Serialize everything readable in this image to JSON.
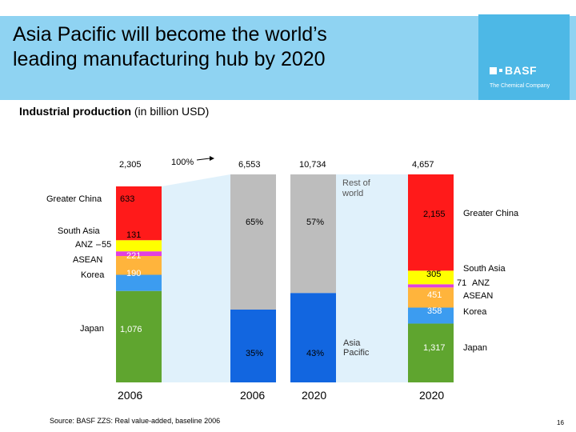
{
  "header": {
    "title_line1": "Asia Pacific will become the world’s",
    "title_line2": "leading manufacturing hub by 2020",
    "logo_text": "BASF",
    "logo_sub": "The Chemical Company",
    "colors": {
      "band": "#8fd3f2",
      "logo": "#4db8e6"
    }
  },
  "subtitle": {
    "bold": "Industrial production",
    "rest": " (in billion USD)"
  },
  "chart_data": {
    "type": "bar",
    "title": "Industrial production (in billion USD)",
    "categories": [
      "2006 Asia Pacific",
      "2006 World",
      "2020 World",
      "2020 Asia Pacific"
    ],
    "series": [
      {
        "name": "Japan",
        "color": "#5fa52f",
        "values": [
          1076,
          null,
          null,
          1317
        ]
      },
      {
        "name": "Korea",
        "color": "#3c9cf0",
        "values": [
          190,
          null,
          null,
          358
        ]
      },
      {
        "name": "ASEAN",
        "color": "#ffb43c",
        "values": [
          221,
          null,
          null,
          451
        ]
      },
      {
        "name": "ANZ",
        "color": "#e040e0",
        "values": [
          55,
          null,
          null,
          71
        ]
      },
      {
        "name": "South Asia",
        "color": "#ffff00",
        "values": [
          131,
          null,
          null,
          305
        ]
      },
      {
        "name": "Greater China",
        "color": "#ff1a1a",
        "values": [
          633,
          null,
          null,
          2155
        ]
      },
      {
        "name": "Asia Pacific share",
        "color": "#1266e0",
        "values": [
          null,
          35,
          43,
          null
        ]
      },
      {
        "name": "Rest of world share",
        "color": "#bdbdbd",
        "values": [
          null,
          65,
          57,
          null
        ]
      }
    ],
    "totals": [
      "2,305",
      "6,553",
      "10,734",
      "4,657"
    ],
    "bar_labels": {
      "col0": [
        "1,076",
        "190",
        "221",
        "131",
        "633"
      ],
      "col1": [
        "35%",
        "65%"
      ],
      "col2": [
        "43%",
        "57%"
      ],
      "col3": [
        "1,317",
        "358",
        "451",
        "305",
        "2,155"
      ]
    },
    "left_legend": [
      "Greater China",
      "South Asia",
      "ANZ",
      "55",
      "ASEAN",
      "Korea",
      "Japan"
    ],
    "right_legend": [
      "Greater China",
      "South Asia",
      "71",
      "ANZ",
      "ASEAN",
      "Korea",
      "Japan"
    ],
    "annotations": {
      "pct_arrow": "100%",
      "rest_of_world": [
        "Rest of",
        "world"
      ],
      "asia_pacific": [
        "Asia",
        "Pacific"
      ]
    },
    "years": [
      "2006",
      "2006",
      "2020",
      "2020"
    ],
    "connector_color": "#daeffa"
  },
  "footer": {
    "source": "Source: BASF ZZS: Real value-added, baseline 2006",
    "page": "16"
  }
}
